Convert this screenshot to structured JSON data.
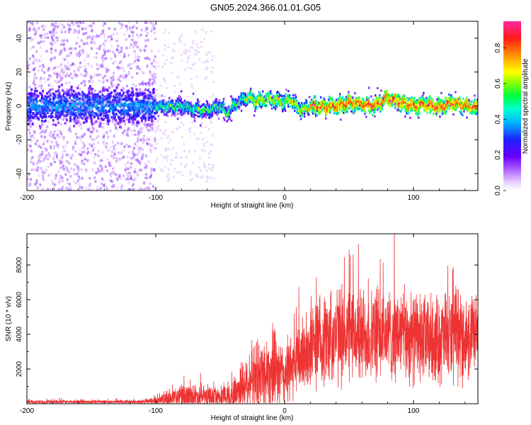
{
  "title": "GN05.2024.366.01.01.G05",
  "chart_data": [
    {
      "type": "heatmap",
      "xlabel": "Height of straight line (km)",
      "ylabel": "Frequency (Hz)",
      "xlim": [
        -200,
        150
      ],
      "ylim": [
        -50,
        50
      ],
      "xticks": [
        -200,
        -100,
        0,
        100
      ],
      "yticks": [
        -40,
        -20,
        0,
        20,
        40
      ],
      "colorbar": {
        "label": "Normalized spectral amplitude",
        "range": [
          0,
          0.95
        ],
        "ticks": [
          0.0,
          0.2,
          0.4,
          0.6,
          0.8
        ]
      },
      "ridge": {
        "x": [
          -100,
          -90,
          -80,
          -70,
          -60,
          -50,
          -45,
          -40,
          -30,
          -20,
          -10,
          0,
          5,
          10,
          15,
          20,
          30,
          40,
          50,
          60,
          70,
          80,
          90,
          100,
          110,
          120,
          130,
          140,
          150
        ],
        "y": [
          0,
          -1,
          0,
          -2,
          -3,
          0,
          -5,
          0,
          5,
          3,
          4,
          2,
          4,
          -1,
          -3,
          0,
          -1,
          0,
          2,
          1,
          0,
          5,
          2,
          0,
          1,
          -1,
          2,
          0,
          -1
        ]
      }
    },
    {
      "type": "line",
      "xlabel": "Height of straight line (km)",
      "ylabel": "SNR (10 * v/v)",
      "xlim": [
        -200,
        150
      ],
      "ylim": [
        0,
        9800
      ],
      "xticks": [
        -200,
        -100,
        0,
        100
      ],
      "yticks": [
        2000,
        4000,
        6000,
        8000
      ],
      "series_color": "#ee3333",
      "envelope": {
        "x": [
          -200,
          -150,
          -110,
          -100,
          -90,
          -80,
          -70,
          -60,
          -50,
          -40,
          -35,
          -30,
          -20,
          -10,
          0,
          10,
          20,
          30,
          40,
          50,
          60,
          70,
          80,
          90,
          100,
          110,
          120,
          130,
          140,
          150
        ],
        "base": [
          100,
          100,
          110,
          150,
          280,
          380,
          420,
          380,
          350,
          500,
          900,
          1200,
          1700,
          1900,
          1600,
          2500,
          3300,
          3700,
          4000,
          4000,
          3900,
          3900,
          4000,
          4000,
          3800,
          3700,
          3700,
          3800,
          3800,
          3800
        ],
        "spread": [
          150,
          150,
          150,
          300,
          700,
          900,
          900,
          800,
          700,
          1200,
          1800,
          2200,
          2500,
          2800,
          2200,
          2600,
          3000,
          3200,
          3400,
          3300,
          3300,
          3200,
          3100,
          3200,
          3100,
          3000,
          3100,
          3200,
          3000,
          3000
        ]
      }
    }
  ]
}
